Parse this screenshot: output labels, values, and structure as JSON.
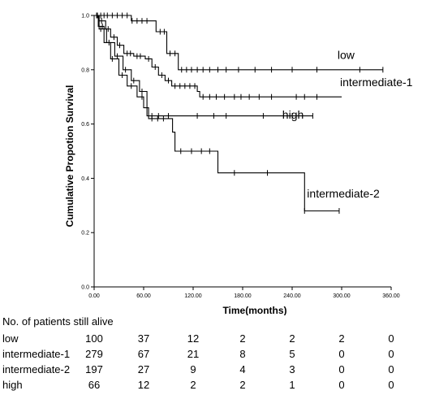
{
  "chart_data": {
    "type": "line",
    "title": "",
    "xlabel": "Time(months)",
    "ylabel": "Cumulative Propotion Survival",
    "xlim": [
      0,
      360
    ],
    "ylim": [
      0,
      1
    ],
    "x_ticks": [
      "0.00",
      "60.00",
      "120.00",
      "180.00",
      "240.00",
      "300.00",
      "360.00"
    ],
    "y_ticks": [
      "0.0",
      "0.2",
      "0.4",
      "0.6",
      "0.8",
      "1.0"
    ],
    "grid": false,
    "series": [
      {
        "name": "low",
        "steps": [
          [
            0,
            1.0
          ],
          [
            45,
            0.98
          ],
          [
            75,
            0.94
          ],
          [
            88,
            0.86
          ],
          [
            102,
            0.8
          ],
          [
            350,
            0.8
          ]
        ],
        "censor_times": [
          4,
          8,
          12,
          16,
          22,
          28,
          34,
          40,
          46,
          52,
          58,
          64,
          80,
          85,
          92,
          98,
          106,
          112,
          118,
          125,
          132,
          140,
          150,
          160,
          175,
          195,
          215,
          240,
          270,
          322,
          350
        ]
      },
      {
        "name": "intermediate-1",
        "steps": [
          [
            0,
            1.0
          ],
          [
            6,
            0.98
          ],
          [
            14,
            0.95
          ],
          [
            20,
            0.92
          ],
          [
            28,
            0.89
          ],
          [
            36,
            0.86
          ],
          [
            48,
            0.85
          ],
          [
            62,
            0.84
          ],
          [
            70,
            0.81
          ],
          [
            78,
            0.78
          ],
          [
            86,
            0.76
          ],
          [
            94,
            0.74
          ],
          [
            125,
            0.72
          ],
          [
            128,
            0.7
          ],
          [
            300,
            0.7
          ]
        ],
        "censor_times": [
          3,
          9,
          17,
          24,
          31,
          40,
          44,
          52,
          56,
          66,
          74,
          82,
          90,
          98,
          104,
          110,
          116,
          122,
          132,
          140,
          148,
          158,
          170,
          178,
          188,
          200,
          215,
          245,
          255,
          270
        ]
      },
      {
        "name": "intermediate-2",
        "steps": [
          [
            0,
            1.0
          ],
          [
            5,
            0.96
          ],
          [
            12,
            0.9
          ],
          [
            20,
            0.84
          ],
          [
            30,
            0.78
          ],
          [
            40,
            0.74
          ],
          [
            52,
            0.7
          ],
          [
            60,
            0.66
          ],
          [
            66,
            0.62
          ],
          [
            95,
            0.57
          ],
          [
            98,
            0.5
          ],
          [
            105,
            0.5
          ],
          [
            150,
            0.42
          ],
          [
            250,
            0.42
          ],
          [
            255,
            0.28
          ],
          [
            297,
            0.28
          ]
        ],
        "censor_times": [
          10,
          22,
          34,
          45,
          58,
          70,
          77,
          84,
          105,
          118,
          130,
          140,
          170,
          210,
          255,
          297
        ]
      },
      {
        "name": "high",
        "steps": [
          [
            0,
            1.0
          ],
          [
            6,
            0.95
          ],
          [
            15,
            0.9
          ],
          [
            25,
            0.85
          ],
          [
            35,
            0.8
          ],
          [
            45,
            0.76
          ],
          [
            55,
            0.72
          ],
          [
            64,
            0.63
          ],
          [
            265,
            0.63
          ]
        ],
        "censor_times": [
          8,
          18,
          28,
          38,
          48,
          58,
          70,
          78,
          90,
          125,
          145,
          160,
          205,
          240,
          265
        ]
      }
    ],
    "annotations": [
      {
        "text": "low",
        "x": 295,
        "y": 0.84
      },
      {
        "text": "intermediate-1",
        "x": 298,
        "y": 0.74
      },
      {
        "text": "high",
        "x": 228,
        "y": 0.62
      },
      {
        "text": "intermediate-2",
        "x": 258,
        "y": 0.33
      }
    ]
  },
  "risk_table": {
    "heading": "No. of patients still alive",
    "times": [
      0,
      60,
      120,
      180,
      240,
      300,
      360
    ],
    "rows": [
      {
        "name": "low",
        "counts": [
          "100",
          "37",
          "12",
          "2",
          "2",
          "2",
          "0"
        ]
      },
      {
        "name": "intermediate-1",
        "counts": [
          "279",
          "67",
          "21",
          "8",
          "5",
          "0",
          "0"
        ]
      },
      {
        "name": "intermediate-2",
        "counts": [
          "197",
          "27",
          "9",
          "4",
          "3",
          "0",
          "0"
        ]
      },
      {
        "name": "high",
        "counts": [
          "66",
          "12",
          "2",
          "2",
          "1",
          "0",
          "0"
        ]
      }
    ]
  }
}
